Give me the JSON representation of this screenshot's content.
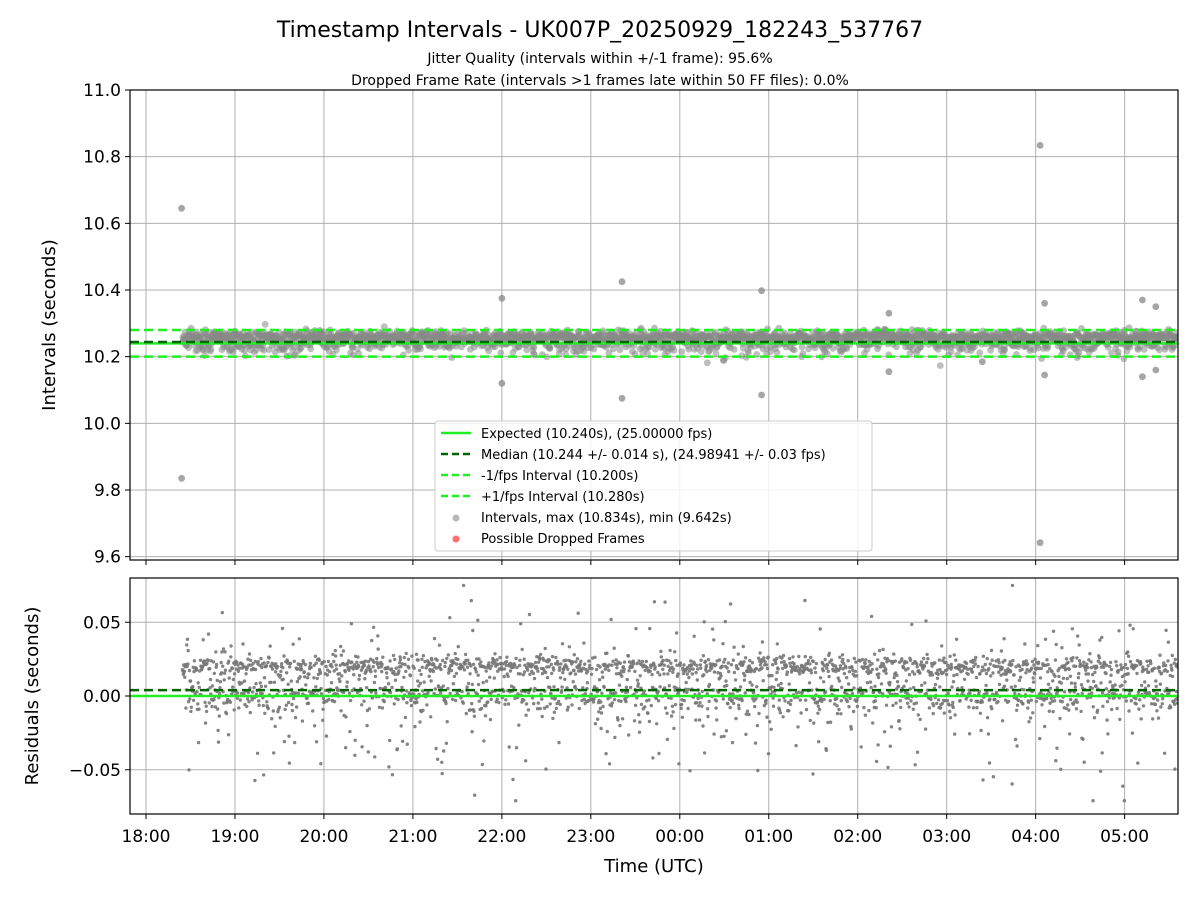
{
  "chart_data": [
    {
      "type": "scatter",
      "title": "Timestamp Intervals - UK007P_20250929_182243_537767",
      "subtitle_lines": [
        "Jitter Quality (intervals within +/-1 frame): 95.6%",
        "Dropped Frame Rate (intervals >1 frames late within 50 FF files): 0.0%"
      ],
      "ylabel": "Intervals (seconds)",
      "xlim_hours": [
        17.82,
        29.6
      ],
      "ylim": [
        9.59,
        11.0
      ],
      "yticks": [
        9.6,
        9.8,
        10.0,
        10.2,
        10.4,
        10.6,
        10.8,
        11.0
      ],
      "ytick_labels": [
        "9.6",
        "9.8",
        "10.0",
        "10.2",
        "10.4",
        "10.6",
        "10.8",
        "11.0"
      ],
      "grid": true,
      "reference_lines": [
        {
          "name": "Expected (10.240s), (25.00000 fps)",
          "y": 10.24,
          "style": "solid",
          "color": "#22ee22"
        },
        {
          "name": "Median (10.244 +/- 0.014 s), (24.98941 +/- 0.03 fps)",
          "y": 10.244,
          "style": "dashed",
          "color": "#006400"
        },
        {
          "name": "-1/fps Interval (10.200s)",
          "y": 10.2,
          "style": "dashed",
          "color": "#22ee22"
        },
        {
          "name": "+1/fps Interval (10.280s)",
          "y": 10.28,
          "style": "dashed",
          "color": "#22ee22"
        }
      ],
      "series": [
        {
          "name": "Intervals, max (10.834s), min (9.642s)",
          "color": "#888888",
          "t_start_hours": 18.41,
          "t_end_hours": 29.6,
          "max": 10.834,
          "min": 9.642
        },
        {
          "name": "Possible Dropped Frames",
          "color": "#ff5555",
          "values": []
        }
      ],
      "outliers": [
        [
          18.4,
          10.645
        ],
        [
          18.4,
          9.835
        ],
        [
          22.0,
          10.375
        ],
        [
          22.0,
          10.12
        ],
        [
          23.35,
          10.425
        ],
        [
          23.35,
          10.075
        ],
        [
          24.92,
          10.398
        ],
        [
          24.92,
          10.085
        ],
        [
          26.35,
          10.33
        ],
        [
          26.35,
          10.155
        ],
        [
          27.4,
          10.185
        ],
        [
          28.05,
          10.834
        ],
        [
          28.05,
          9.642
        ],
        [
          28.1,
          10.36
        ],
        [
          28.1,
          10.145
        ],
        [
          29.2,
          10.37
        ],
        [
          29.35,
          10.35
        ],
        [
          29.35,
          10.16
        ],
        [
          29.2,
          10.14
        ]
      ],
      "legend_position": "lower-center"
    },
    {
      "type": "scatter",
      "ylabel": "Residuals (seconds)",
      "xlabel": "Time (UTC)",
      "xlim_hours": [
        17.82,
        29.6
      ],
      "ylim": [
        -0.08,
        0.08
      ],
      "yticks": [
        -0.05,
        0.0,
        0.05
      ],
      "ytick_labels": [
        "−0.05",
        "0.00",
        "0.05"
      ],
      "xticks_hours": [
        18,
        19,
        20,
        21,
        22,
        23,
        24,
        25,
        26,
        27,
        28,
        29
      ],
      "xtick_labels": [
        "18:00",
        "19:00",
        "20:00",
        "21:00",
        "22:00",
        "23:00",
        "00:00",
        "01:00",
        "02:00",
        "03:00",
        "04:00",
        "05:00"
      ],
      "grid": true,
      "reference_lines": [
        {
          "name": "Expected",
          "y": 0.0,
          "style": "solid",
          "color": "#22ee22"
        },
        {
          "name": "Median",
          "y": 0.004,
          "style": "dashed",
          "color": "#006400"
        }
      ],
      "series": [
        {
          "name": "Residuals",
          "color": "#777777",
          "t_start_hours": 18.41,
          "t_end_hours": 29.6,
          "range": [
            -0.071,
            0.075
          ]
        }
      ]
    }
  ]
}
